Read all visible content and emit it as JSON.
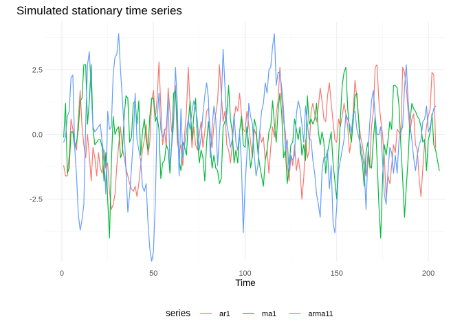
{
  "chart_data": {
    "type": "line",
    "title": "Simulated stationary time series",
    "xlabel": "Time",
    "ylabel": "",
    "xlim": [
      -9,
      209
    ],
    "ylim": [
      -4.9,
      4.35
    ],
    "x_ticks": [
      0,
      50,
      100,
      150,
      200
    ],
    "x_tick_labels": [
      "0",
      "50",
      "100",
      "150",
      "200"
    ],
    "y_ticks": [
      -2.5,
      0,
      2.5
    ],
    "y_tick_labels": [
      "-2.5",
      "0.0",
      "2.5"
    ],
    "grid": true,
    "legend": {
      "title": "series",
      "position": "bottom"
    },
    "x": {
      "start": 1,
      "end": 200,
      "step": 1
    },
    "series": [
      {
        "name": "ar1",
        "color": "#F8766D",
        "values": [
          -1.2,
          -1.6,
          -1.6,
          -0.8,
          0.6,
          0.2,
          -0.3,
          -0.6,
          0.7,
          1.7,
          0.3,
          -0.4,
          -0.9,
          0.0,
          -0.8,
          -1.8,
          -0.5,
          -0.9,
          -1.6,
          -0.7,
          -1.3,
          -1.5,
          -0.6,
          -1.3,
          -1.1,
          -2.2,
          -2.9,
          -2.7,
          -2.3,
          -1.2,
          -0.4,
          0.3,
          -0.5,
          -0.9,
          -1.3,
          -1.6,
          -1.9,
          -2.1,
          -2.2,
          -2.0,
          -2.4,
          -1.9,
          -1.2,
          -0.6,
          -0.2,
          0.4,
          -0.8,
          -0.3,
          1.3,
          1.7,
          0.6,
          1.4,
          2.8,
          1.1,
          -0.4,
          0.2,
          -0.5,
          1.8,
          0.9,
          0.1,
          0.7,
          1.9,
          -0.3,
          -0.7,
          -0.4,
          -1.2,
          0.0,
          0.9,
          2.6,
          1.1,
          -0.5,
          0.3,
          -0.4,
          -0.6,
          0.0,
          0.5,
          -0.5,
          0.1,
          0.9,
          1.0,
          0.1,
          -0.5,
          0.4,
          0.8,
          1.3,
          2.7,
          1.6,
          0.5,
          0.9,
          -0.4,
          -0.6,
          -1.1,
          -0.4,
          0.6,
          1.1,
          0.9,
          1.6,
          0.8,
          0.2,
          0.1,
          0.9,
          0.4,
          -0.3,
          -0.9,
          0.2,
          0.0,
          -0.6,
          0.1,
          -0.3,
          -0.1,
          -1.0,
          -0.6,
          -1.5,
          -0.5,
          0.3,
          -0.1,
          0.8,
          1.3,
          2.6,
          1.4,
          0.5,
          0.1,
          -1.1,
          -1.8,
          -0.8,
          -1.2,
          -0.4,
          -1.4,
          -0.9,
          -1.4,
          -2.5,
          -1.7,
          -0.2,
          -0.9,
          -0.6,
          0.9,
          1.2,
          0.8,
          0.5,
          1.1,
          1.8,
          1.3,
          0.6,
          0.5,
          1.5,
          2.0,
          1.2,
          0.5,
          -0.2,
          -0.3,
          0.6,
          0.3,
          0.7,
          1.2,
          0.8,
          0.3,
          -0.7,
          -0.2,
          0.9,
          2.1,
          1.4,
          0.6,
          -0.1,
          -0.4,
          -0.9,
          -1.6,
          -0.8,
          -1.3,
          0.3,
          0.9,
          2.6,
          2.7,
          1.3,
          0.6,
          0.0,
          -0.9,
          -2.4,
          -1.6,
          -1.9,
          -1.2,
          -0.4,
          -0.7,
          0.2,
          0.1,
          -0.1,
          2.6,
          2.4,
          1.8,
          0.9,
          0.1,
          0.6,
          0.8,
          -0.4,
          -0.6,
          -1.7,
          -2.4,
          -1.3,
          -0.3,
          0.3,
          0.7,
          1.0,
          2.4,
          2.3,
          -0.5
        ]
      },
      {
        "name": "ma1",
        "color": "#00BA38",
        "values": [
          -0.1,
          1.2,
          -1.5,
          -1.3,
          0.1,
          0.1,
          -0.5,
          -0.3,
          0.2,
          1.3,
          1.4,
          2.7,
          2.7,
          0.4,
          1.3,
          2.7,
          0.2,
          -0.4,
          -0.3,
          -0.2,
          -0.2,
          -0.5,
          -1.8,
          -0.7,
          -2.5,
          -4.0,
          -1.1,
          0.7,
          0.0,
          0.2,
          0.3,
          -0.9,
          -0.7,
          0.7,
          1.5,
          1.4,
          -0.3,
          -0.1,
          1.2,
          1.3,
          0.4,
          1.3,
          -0.8,
          0.1,
          0.6,
          -0.2,
          -0.6,
          0.7,
          1.4,
          1.4,
          0.5,
          0.7,
          0.2,
          -1.7,
          -1.1,
          -1.0,
          -0.4,
          -0.6,
          -1.5,
          -0.3,
          1.6,
          1.7,
          0.3,
          -1.0,
          -1.4,
          -0.3,
          -0.5,
          -0.8,
          0.5,
          1.3,
          -0.2,
          0.7,
          1.4,
          -0.2,
          -1.1,
          -0.6,
          -0.9,
          -1.8,
          -0.3,
          0.5,
          -0.4,
          -1.3,
          -0.8,
          -1.3,
          -1.4,
          -1.9,
          -1.7,
          0.3,
          0.5,
          0.8,
          1.9,
          0.6,
          0.1,
          -1.1,
          -0.6,
          -1.1,
          0.1,
          0.7,
          -0.4,
          -0.5,
          0.3,
          -0.4,
          -1.3,
          -0.8,
          0.6,
          0.3,
          -0.7,
          -1.2,
          -1.6,
          -2.0,
          -1.0,
          -0.6,
          0.1,
          0.3,
          1.3,
          0.4,
          -0.3,
          0.9,
          1.6,
          0.8,
          -0.9,
          -0.6,
          -1.9,
          -1.2,
          -0.4,
          -0.3,
          0.6,
          0.2,
          -0.2,
          0.3,
          -0.8,
          -0.4,
          -1.0,
          1.5,
          0.4,
          0.6,
          0.4,
          0.6,
          1.2,
          0.1,
          -0.4,
          0.1,
          -0.3,
          -1.5,
          -0.7,
          -0.3,
          0.1,
          -1.1,
          -1.8,
          -2.5,
          -0.9,
          0.6,
          1.9,
          2.4,
          2.6,
          1.0,
          0.2,
          -0.3,
          0.5,
          1.5,
          1.6,
          0.5,
          -0.7,
          -1.1,
          -2.0,
          -0.7,
          -0.3,
          -1.2,
          -1.3,
          -0.2,
          0.7,
          -0.9,
          -2.7,
          -4.0,
          -1.7,
          -0.4,
          -0.8,
          -0.2,
          0.5,
          0.2,
          1.9,
          1.9,
          1.8,
          1.1,
          -0.4,
          -1.7,
          -3.2,
          -2.0,
          -0.9,
          0.5,
          1.2,
          1.0,
          0.9,
          0.7,
          0.6,
          0.3,
          -0.3,
          -0.2,
          -1.4,
          -0.2,
          0.1,
          0.8,
          -0.4,
          -0.6,
          -1.0,
          -1.4
        ]
      },
      {
        "name": "arma11",
        "color": "#619CFF",
        "values": [
          -0.3,
          -0.1,
          0.7,
          0.9,
          2.2,
          2.3,
          -0.5,
          -1.6,
          -3.1,
          -3.7,
          -3.3,
          -2.7,
          0.4,
          2.7,
          3.2,
          1.7,
          0.3,
          0.1,
          0.2,
          0.3,
          0.4,
          -0.3,
          -0.8,
          -2.3,
          0.9,
          0.2,
          0.3,
          2.3,
          3.0,
          3.1,
          3.9,
          2.5,
          1.4,
          0.2,
          -1.4,
          -3.0,
          -2.3,
          -1.3,
          -0.2,
          1.6,
          -0.2,
          -0.6,
          -1.0,
          -2.0,
          -2.2,
          -1.9,
          -3.4,
          -4.4,
          -4.9,
          -4.5,
          -2.6,
          0.6,
          1.6,
          0.2,
          -0.1,
          0.1,
          0.3,
          1.4,
          -1.2,
          -0.4,
          0.4,
          2.6,
          1.2,
          -1.6,
          1.0,
          -0.9,
          -0.4,
          0.1,
          0.6,
          0.2,
          0.9,
          1.3,
          1.0,
          0.5,
          -0.6,
          -0.1,
          0.8,
          1.5,
          2.0,
          1.4,
          -0.9,
          0.3,
          1.1,
          0.6,
          -1.2,
          0.0,
          1.2,
          3.3,
          1.9,
          0.4,
          0.0,
          -0.5,
          -0.2,
          0.8,
          -0.3,
          -0.6,
          0.1,
          -1.1,
          -3.8,
          -2.0,
          -0.8,
          1.2,
          0.7,
          0.4,
          -0.8,
          -1.6,
          -1.2,
          0.1,
          0.9,
          1.2,
          2.0,
          1.6,
          2.5,
          2.6,
          3.4,
          3.9,
          1.9,
          2.4,
          2.4,
          1.8,
          1.0,
          -0.6,
          -0.2,
          -1.4,
          -0.8,
          -1.0,
          -0.8,
          0.8,
          1.3,
          1.0,
          0.4,
          -0.3,
          1.1,
          0.4,
          -0.2,
          -0.2,
          -1.0,
          -1.5,
          -2.3,
          -2.7,
          -3.2,
          -1.4,
          -0.9,
          -0.9,
          -0.6,
          -2.1,
          -1.2,
          -3.4,
          -3.8,
          -2.8,
          -1.4,
          -1.0,
          -0.6,
          -0.2,
          0.8,
          0.6,
          0.4,
          0.1,
          0.8,
          0.9,
          0.2,
          -0.1,
          -0.4,
          -0.8,
          -1.3,
          -2.9,
          -0.8,
          0.4,
          1.3,
          1.7,
          0.7,
          0.0,
          0.0,
          0.3,
          -1.0,
          -2.3,
          -2.7,
          -1.4,
          -0.5,
          -0.7,
          -1.5,
          -0.8,
          -1.5,
          -0.2,
          0.1,
          0.3,
          1.8,
          2.7,
          1.3,
          0.4,
          -0.2,
          -0.9,
          -1.4,
          -0.8,
          -0.4,
          -0.2,
          0.5,
          0.6,
          1.1,
          0.1,
          0.3,
          0.7,
          1.0,
          1.1
        ]
      }
    ]
  }
}
